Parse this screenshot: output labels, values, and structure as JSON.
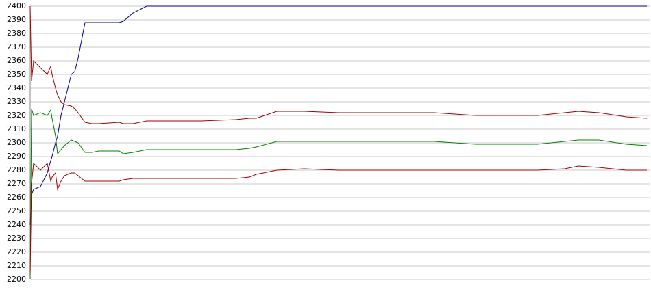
{
  "chart_data": {
    "type": "line",
    "x": [
      0,
      2,
      5,
      15,
      25,
      30,
      32,
      37,
      40,
      45,
      50,
      60,
      65,
      70,
      80,
      90,
      100,
      130,
      136,
      150,
      170,
      200,
      250,
      300,
      320,
      330,
      360,
      400,
      450,
      590,
      650,
      700,
      740,
      780,
      800,
      830,
      870,
      900
    ],
    "xlim": [
      0,
      904
    ],
    "series": [
      {
        "color": "#000080",
        "values": [
          2240,
          2262,
          2266,
          2268,
          2278,
          2287,
          2290,
          2300,
          2305,
          2320,
          2330,
          2350,
          2352,
          2362,
          2388,
          2388,
          2388,
          2388,
          2389,
          2395,
          2400,
          2400,
          2400,
          2400,
          2400,
          2400,
          2400,
          2400,
          2400,
          2400,
          2400,
          2400,
          2400,
          2400,
          2400,
          2400,
          2400,
          2400
        ]
      },
      {
        "color": "#a00000",
        "values": [
          2400,
          2345,
          2360,
          2355,
          2350,
          2356,
          2350,
          2340,
          2335,
          2330,
          2328,
          2327,
          2325,
          2322,
          2315,
          2314,
          2314,
          2315,
          2314,
          2314,
          2316,
          2316,
          2316,
          2317,
          2318,
          2318,
          2323,
          2323,
          2322,
          2322,
          2320,
          2320,
          2320,
          2322,
          2323,
          2322,
          2319,
          2318
        ]
      },
      {
        "color": "#008000",
        "values": [
          2200,
          2325,
          2320,
          2322,
          2320,
          2324,
          2318,
          2305,
          2292,
          2295,
          2298,
          2302,
          2301,
          2300,
          2293,
          2293,
          2294,
          2294,
          2292,
          2293,
          2295,
          2295,
          2295,
          2295,
          2296,
          2297,
          2301,
          2301,
          2301,
          2301,
          2299,
          2299,
          2299,
          2301,
          2302,
          2302,
          2299,
          2298
        ]
      },
      {
        "color": "#a00000",
        "values": [
          2205,
          2270,
          2285,
          2280,
          2285,
          2272,
          2275,
          2278,
          2266,
          2272,
          2276,
          2278,
          2278,
          2276,
          2272,
          2272,
          2272,
          2272,
          2273,
          2274,
          2274,
          2274,
          2274,
          2274,
          2275,
          2277,
          2280,
          2281,
          2280,
          2280,
          2280,
          2280,
          2280,
          2281,
          2283,
          2282,
          2280,
          2280
        ]
      }
    ],
    "ylim": [
      2200,
      2400
    ],
    "yticks": [
      2200,
      2210,
      2220,
      2230,
      2240,
      2250,
      2260,
      2270,
      2280,
      2290,
      2300,
      2310,
      2320,
      2330,
      2340,
      2350,
      2360,
      2370,
      2380,
      2390,
      2400
    ],
    "grid": true
  }
}
